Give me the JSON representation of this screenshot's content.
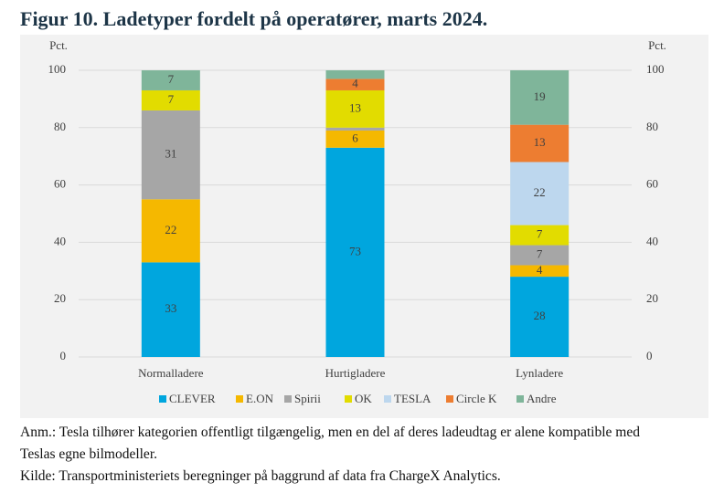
{
  "chart_data": {
    "type": "stacked_bar",
    "title": "Figur 10. Ladetyper fordelt på operatører, marts 2024.",
    "ylabel": "Pct.",
    "y2label": "Pct.",
    "categories": [
      "Normalladere",
      "Hurtigladere",
      "Lynladere"
    ],
    "series": [
      {
        "name": "CLEVER",
        "color": "#00a6de",
        "values": [
          33,
          73,
          28
        ]
      },
      {
        "name": "E.ON",
        "color": "#f5b800",
        "values": [
          22,
          6,
          4
        ]
      },
      {
        "name": "Spirii",
        "color": "#a6a6a6",
        "values": [
          31,
          1,
          7
        ]
      },
      {
        "name": "OK",
        "color": "#e2dc00",
        "values": [
          7,
          13,
          7
        ]
      },
      {
        "name": "TESLA",
        "color": "#bdd7ee",
        "values": [
          0,
          0,
          22
        ]
      },
      {
        "name": "Circle K",
        "color": "#ed7d31",
        "values": [
          0,
          4,
          13
        ]
      },
      {
        "name": "Andre",
        "color": "#7fb59a",
        "values": [
          7,
          3,
          19
        ]
      }
    ],
    "ylim": [
      0,
      100
    ],
    "yticks": [
      0,
      20,
      40,
      60,
      80,
      100
    ],
    "y2lim": [
      0,
      100
    ],
    "y2ticks": [
      0,
      20,
      40,
      60,
      80,
      100
    ],
    "grid": true,
    "legend": "bottom"
  },
  "notes": [
    "Anm.: Tesla tilhører kategorien offentligt tilgængelig, men en del af deres ladeudtag er alene kompatible med Teslas egne bilmodeller.",
    "Kilde: Transportministeriets beregninger på baggrund af data fra ChargeX Analytics."
  ]
}
